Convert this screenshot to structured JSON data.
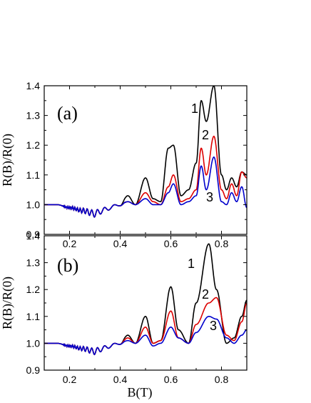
{
  "chart_data": [
    {
      "type": "line",
      "panel_label": "(a)",
      "ylabel": "R(B)/R(0)",
      "xlabel": "",
      "xlim": [
        0.1,
        0.9
      ],
      "ylim": [
        0.9,
        1.4
      ],
      "xticks": [
        "0.2",
        "0.4",
        "0.6",
        "0.8"
      ],
      "yticks": [
        "0.9",
        "1.0",
        "1.1",
        "1.2",
        "1.3",
        "1.4"
      ],
      "grid": false,
      "series": [
        {
          "name": "1",
          "color": "#000000",
          "x": [
            0.1,
            0.15,
            0.2,
            0.25,
            0.3,
            0.33,
            0.36,
            0.4,
            0.43,
            0.46,
            0.5,
            0.53,
            0.56,
            0.59,
            0.61,
            0.64,
            0.67,
            0.7,
            0.72,
            0.74,
            0.77,
            0.8,
            0.82,
            0.84,
            0.86,
            0.88,
            0.9
          ],
          "y": [
            1.0,
            1.0,
            0.99,
            0.98,
            0.97,
            0.98,
            0.99,
            1.0,
            1.03,
            1.0,
            1.09,
            1.02,
            1.01,
            1.19,
            1.2,
            1.03,
            1.05,
            1.14,
            1.35,
            1.28,
            1.4,
            1.1,
            1.05,
            1.09,
            1.06,
            1.11,
            1.1
          ]
        },
        {
          "name": "2",
          "color": "#dd0000",
          "x": [
            0.1,
            0.15,
            0.2,
            0.25,
            0.3,
            0.33,
            0.36,
            0.4,
            0.43,
            0.46,
            0.5,
            0.53,
            0.56,
            0.59,
            0.61,
            0.64,
            0.67,
            0.7,
            0.72,
            0.74,
            0.77,
            0.8,
            0.82,
            0.84,
            0.86,
            0.88,
            0.9
          ],
          "y": [
            1.0,
            1.0,
            0.99,
            0.98,
            0.97,
            0.98,
            0.99,
            1.0,
            1.01,
            1.0,
            1.04,
            1.01,
            1.0,
            1.06,
            1.1,
            1.01,
            1.02,
            1.05,
            1.19,
            1.1,
            1.23,
            1.05,
            1.02,
            1.07,
            1.03,
            1.11,
            1.09
          ]
        },
        {
          "name": "3",
          "color": "#0000cc",
          "x": [
            0.1,
            0.15,
            0.2,
            0.25,
            0.3,
            0.33,
            0.36,
            0.4,
            0.43,
            0.46,
            0.5,
            0.53,
            0.56,
            0.59,
            0.61,
            0.64,
            0.67,
            0.7,
            0.72,
            0.74,
            0.77,
            0.8,
            0.82,
            0.84,
            0.86,
            0.88,
            0.9
          ],
          "y": [
            1.0,
            1.0,
            0.99,
            0.98,
            0.97,
            0.98,
            0.99,
            1.0,
            1.01,
            1.0,
            1.02,
            1.0,
            1.0,
            1.04,
            1.07,
            1.0,
            1.01,
            1.03,
            1.13,
            1.05,
            1.16,
            1.01,
            1.0,
            1.04,
            1.01,
            1.06,
            0.99
          ]
        }
      ]
    },
    {
      "type": "line",
      "panel_label": "(b)",
      "ylabel": "R(B)/R(0)",
      "xlabel": "B(T)",
      "xlim": [
        0.1,
        0.9
      ],
      "ylim": [
        0.9,
        1.4
      ],
      "xticks": [
        "0.2",
        "0.4",
        "0.6",
        "0.8"
      ],
      "yticks": [
        "0.9",
        "1.0",
        "1.1",
        "1.2",
        "1.3",
        "1.4"
      ],
      "grid": false,
      "series": [
        {
          "name": "1",
          "color": "#000000",
          "x": [
            0.1,
            0.15,
            0.2,
            0.25,
            0.3,
            0.33,
            0.36,
            0.4,
            0.43,
            0.46,
            0.5,
            0.53,
            0.56,
            0.6,
            0.63,
            0.67,
            0.7,
            0.75,
            0.78,
            0.82,
            0.85,
            0.88,
            0.9
          ],
          "y": [
            1.0,
            1.0,
            0.99,
            0.98,
            0.97,
            0.98,
            0.99,
            1.0,
            1.03,
            1.0,
            1.1,
            1.0,
            1.01,
            1.21,
            1.05,
            1.0,
            1.15,
            1.37,
            1.2,
            1.0,
            1.02,
            1.1,
            1.16
          ]
        },
        {
          "name": "2",
          "color": "#dd0000",
          "x": [
            0.1,
            0.15,
            0.2,
            0.25,
            0.3,
            0.33,
            0.36,
            0.4,
            0.43,
            0.46,
            0.5,
            0.53,
            0.56,
            0.6,
            0.63,
            0.67,
            0.7,
            0.75,
            0.78,
            0.82,
            0.85,
            0.88,
            0.9
          ],
          "y": [
            1.0,
            1.0,
            0.99,
            0.98,
            0.97,
            0.98,
            0.99,
            1.0,
            1.02,
            1.0,
            1.06,
            1.0,
            1.01,
            1.12,
            1.02,
            1.0,
            1.07,
            1.15,
            1.17,
            1.03,
            1.01,
            1.08,
            1.15
          ]
        },
        {
          "name": "3",
          "color": "#0000cc",
          "x": [
            0.1,
            0.15,
            0.2,
            0.25,
            0.3,
            0.33,
            0.36,
            0.4,
            0.43,
            0.46,
            0.5,
            0.53,
            0.56,
            0.6,
            0.63,
            0.67,
            0.7,
            0.75,
            0.78,
            0.82,
            0.85,
            0.88,
            0.9
          ],
          "y": [
            1.0,
            1.0,
            0.99,
            0.98,
            0.97,
            0.98,
            0.99,
            1.0,
            1.01,
            1.0,
            1.03,
            0.99,
            1.0,
            1.06,
            1.02,
            1.0,
            1.04,
            1.1,
            1.09,
            1.02,
            1.0,
            1.03,
            1.05
          ]
        }
      ]
    }
  ]
}
